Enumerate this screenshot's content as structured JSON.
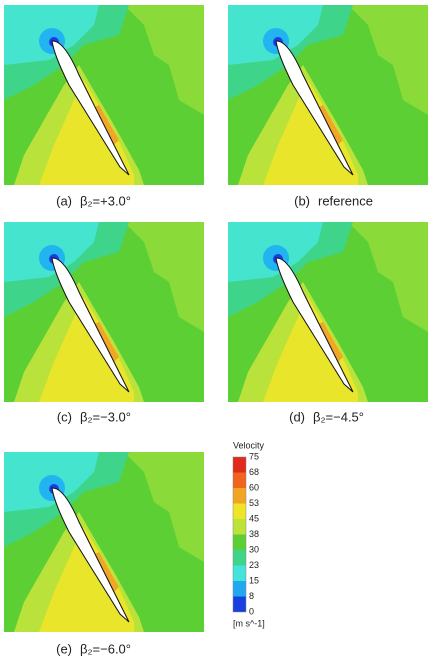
{
  "panels": [
    {
      "label": "(a)",
      "caption": "β₂=+3.0°"
    },
    {
      "label": "(b)",
      "caption": "reference"
    },
    {
      "label": "(c)",
      "caption": "β₂=−3.0°"
    },
    {
      "label": "(d)",
      "caption": "β₂=−4.5°"
    },
    {
      "label": "(e)",
      "caption": "β₂=−6.0°"
    }
  ],
  "legend": {
    "title": "Velocity",
    "ticks": [
      75,
      68,
      60,
      53,
      45,
      38,
      30,
      23,
      15,
      8,
      0
    ],
    "unit": "[m s^-1]"
  }
}
